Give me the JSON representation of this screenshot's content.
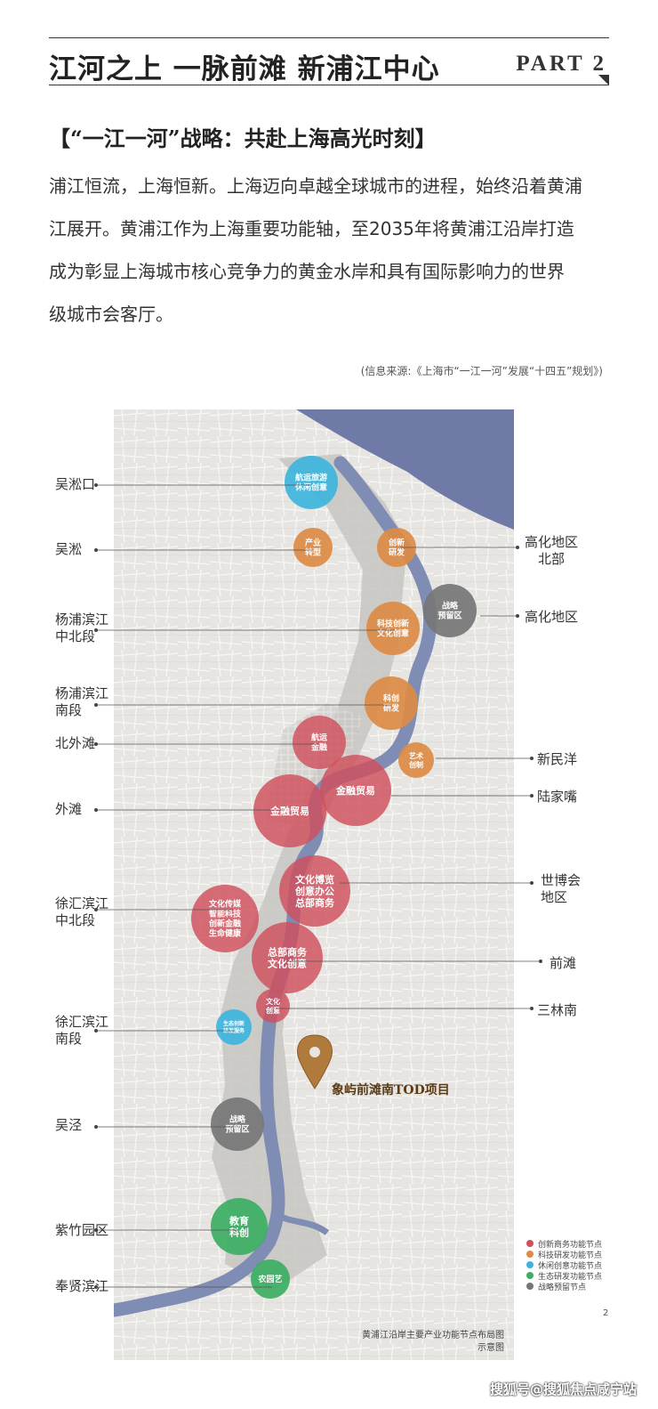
{
  "header": {
    "title": "江河之上 一脉前滩 新浦江中心",
    "part": "PART 2"
  },
  "section": {
    "subhead": "【“一江一河”战略：共赴上海高光时刻】",
    "paragraph_lines": [
      "浦江恒流，上海恒新。上海迈向卓越全球城市的进程，始终沿着黄浦",
      "江展开。黄浦江作为上海重要功能轴，至2035年将黄浦江沿岸打造",
      "成为彰显上海城市核心竞争力的黄金水岸和具有国际影响力的世界",
      "级城市会客厅。"
    ],
    "source": "(信息来源:《上海市“一江一河”发展“十四五”规划》)"
  },
  "map": {
    "left_labels": [
      {
        "id": "wusongkou",
        "text": "吴淞口"
      },
      {
        "id": "wusong",
        "text": "吴淞"
      },
      {
        "id": "yangpu-n",
        "text": "杨浦滨江\n中北段"
      },
      {
        "id": "yangpu-s",
        "text": "杨浦滨江\n南段"
      },
      {
        "id": "beiwaitan",
        "text": "北外滩"
      },
      {
        "id": "waitan",
        "text": "外滩"
      },
      {
        "id": "xuhui-n",
        "text": "徐汇滨江\n中北段"
      },
      {
        "id": "xuhui-s",
        "text": "徐汇滨江\n南段"
      },
      {
        "id": "wujing",
        "text": "吴泾"
      },
      {
        "id": "zizhu",
        "text": "紫竹园区"
      },
      {
        "id": "fengxian",
        "text": "奉贤滨江"
      }
    ],
    "right_labels": [
      {
        "id": "gaohua-n",
        "text": "高化地区\n北部"
      },
      {
        "id": "gaohua",
        "text": "高化地区"
      },
      {
        "id": "xinminyang",
        "text": "新民洋"
      },
      {
        "id": "lujiazui",
        "text": "陆家嘴"
      },
      {
        "id": "shibohui",
        "text": "世博会\n地区"
      },
      {
        "id": "qiantan",
        "text": "前滩"
      },
      {
        "id": "sanlinnan",
        "text": "三林南"
      }
    ],
    "bubbles": [
      {
        "id": "hangyun-lvyou",
        "text": "航运旅游\n休闲创意",
        "kind": "leisure"
      },
      {
        "id": "chanye",
        "text": "产业\n转型",
        "kind": "tech"
      },
      {
        "id": "chuangxin",
        "text": "创新\n研发",
        "kind": "tech"
      },
      {
        "id": "zhanlue-1",
        "text": "战略\n预留区",
        "kind": "reserve"
      },
      {
        "id": "keji",
        "text": "科技创新\n文化创意",
        "kind": "tech"
      },
      {
        "id": "kechuang",
        "text": "科创\n研发",
        "kind": "tech"
      },
      {
        "id": "hangyun-jinrong",
        "text": "航运\n金融",
        "kind": "business"
      },
      {
        "id": "yishu",
        "text": "艺术\n创制",
        "kind": "tech"
      },
      {
        "id": "jinrong-1",
        "text": "金融贸易",
        "kind": "business"
      },
      {
        "id": "jinrong-2",
        "text": "金融贸易",
        "kind": "business"
      },
      {
        "id": "wenhua-bolan",
        "text": "文化博览\n创意办公\n总部商务",
        "kind": "business"
      },
      {
        "id": "wenhua-chuanmei",
        "text": "文化传媒\n智能科技\n创新金融\n生命健康",
        "kind": "business"
      },
      {
        "id": "zongbu",
        "text": "总部商务\n文化创意",
        "kind": "business"
      },
      {
        "id": "wenhua-small",
        "text": "文化\n创意",
        "kind": "business"
      },
      {
        "id": "shengtai",
        "text": "生态创新\n研发服务",
        "kind": "leisure"
      },
      {
        "id": "zhanlue-2",
        "text": "战略\n预留区",
        "kind": "reserve"
      },
      {
        "id": "jiaoyu",
        "text": "教育\n科创",
        "kind": "eco"
      },
      {
        "id": "nongyuanyi",
        "text": "农园艺",
        "kind": "eco"
      }
    ],
    "project_label": "象屿前滩南TOD项目",
    "legend": [
      {
        "text": "创新商务功能节点",
        "color": "#cf4f5c"
      },
      {
        "text": "科技研发功能节点",
        "color": "#dc8b45"
      },
      {
        "text": "休闲创意功能节点",
        "color": "#3eb4dd"
      },
      {
        "text": "生态研发功能节点",
        "color": "#3cae62"
      },
      {
        "text": "战略预留节点",
        "color": "#767676"
      }
    ],
    "caption_line1": "黄浦江沿岸主要产业功能节点布局图",
    "caption_line2": "示意图",
    "page_mark": "2"
  },
  "colors": {
    "business": "#cf4f5c",
    "tech": "#dc8b45",
    "leisure": "#3eb4dd",
    "eco": "#3cae62",
    "reserve": "#767676",
    "river": "#7f8cb4",
    "sea": "#6f7ba6",
    "pin": "#b17a3d"
  },
  "watermark": "搜狐号@搜狐焦点咸宁站"
}
